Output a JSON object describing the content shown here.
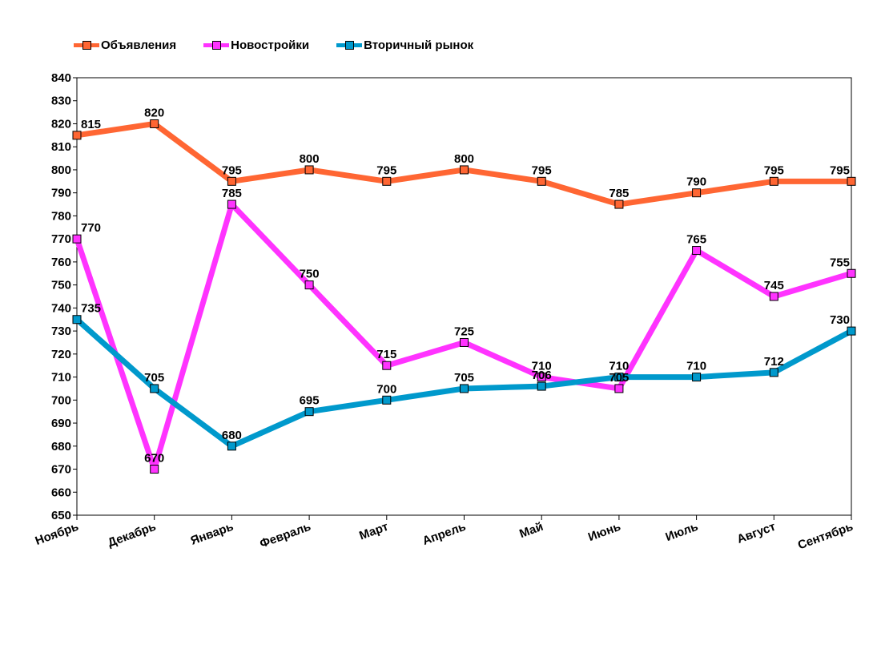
{
  "chart_data": {
    "type": "line",
    "title": "",
    "xlabel": "",
    "ylabel": "",
    "ylim": [
      650,
      840
    ],
    "ystep": 10,
    "grid": false,
    "legend_position": "top-left",
    "categories": [
      "Ноябрь",
      "Декабрь",
      "Январь",
      "Февраль",
      "Март",
      "Апрель",
      "Май",
      "Июнь",
      "Июль",
      "Август",
      "Сентябрь"
    ],
    "series": [
      {
        "name": "Объявления",
        "color": "#ff6633",
        "values": [
          815,
          820,
          795,
          800,
          795,
          800,
          795,
          785,
          790,
          795,
          795
        ]
      },
      {
        "name": "Новостройки",
        "color": "#ff33ff",
        "values": [
          770,
          670,
          785,
          750,
          715,
          725,
          710,
          705,
          765,
          745,
          755
        ]
      },
      {
        "name": "Вторичный рынок",
        "color": "#0099cc",
        "values": [
          735,
          705,
          680,
          695,
          700,
          705,
          706,
          710,
          710,
          712,
          730
        ]
      }
    ]
  }
}
